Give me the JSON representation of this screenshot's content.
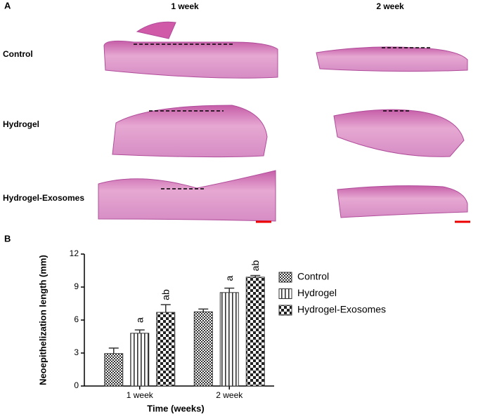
{
  "panel_a": {
    "label": "A",
    "columns": [
      "1 week",
      "2 week"
    ],
    "rows": [
      "Control",
      "Hydrogel",
      "Hydrogel-Exosomes"
    ]
  },
  "chart_data": {
    "type": "bar",
    "label": "B",
    "ylabel": "Neoepithelization length (mm)",
    "xlabel": "Time (weeks)",
    "categories": [
      "1 week",
      "2 week"
    ],
    "ylim": [
      0,
      12
    ],
    "yticks": [
      0,
      3,
      6,
      9,
      12
    ],
    "legend": "right",
    "series": [
      {
        "name": "Control",
        "color": "#333333",
        "pattern": "dots",
        "values": [
          2.95,
          6.75
        ],
        "errors": [
          0.5,
          0.25
        ]
      },
      {
        "name": "Hydrogel",
        "color": "#333333",
        "pattern": "vertical",
        "values": [
          4.8,
          8.5
        ],
        "errors": [
          0.3,
          0.4
        ],
        "labels": [
          "a",
          "a"
        ]
      },
      {
        "name": "Hydrogel-Exosomes",
        "color": "#333333",
        "pattern": "checker",
        "values": [
          6.7,
          9.9
        ],
        "errors": [
          0.7,
          0.15
        ],
        "labels": [
          "ab",
          "ab"
        ]
      }
    ]
  }
}
